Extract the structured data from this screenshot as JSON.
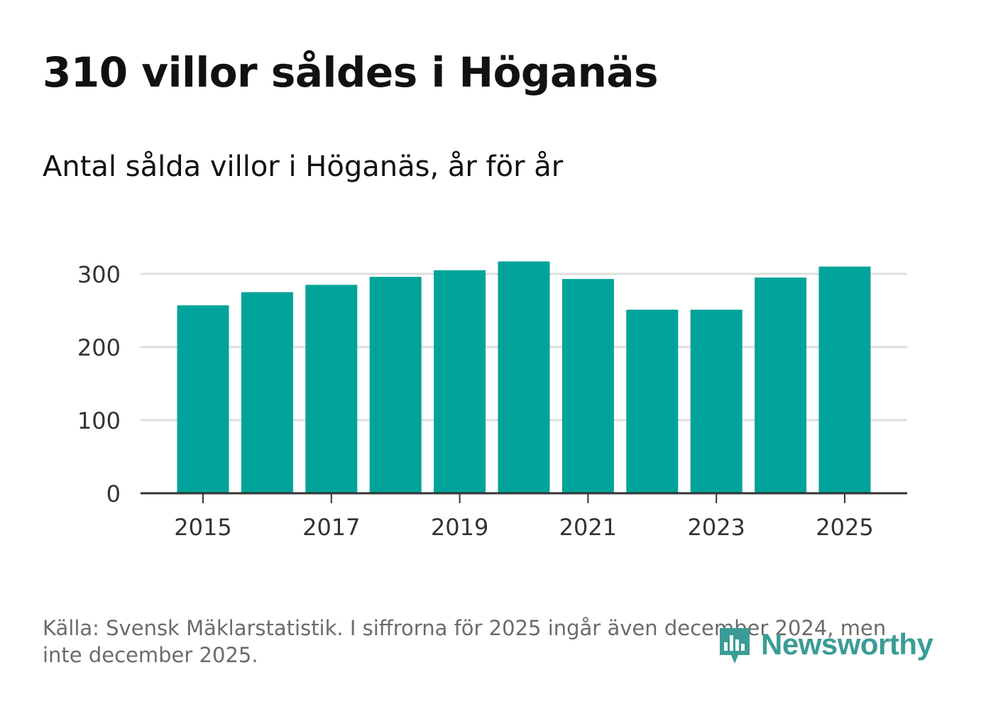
{
  "header": {
    "title": "310 villor såldes i Höganäs",
    "subtitle": "Antal sålda villor i Höganäs, år för år"
  },
  "chart_data": {
    "type": "bar",
    "title": "310 villor såldes i Höganäs",
    "subtitle": "Antal sålda villor i Höganäs, år för år",
    "categories": [
      "2015",
      "2016",
      "2017",
      "2018",
      "2019",
      "2020",
      "2021",
      "2022",
      "2023",
      "2024",
      "2025"
    ],
    "values": [
      257,
      275,
      285,
      296,
      305,
      317,
      293,
      251,
      251,
      295,
      310
    ],
    "xtick_labels": [
      "2015",
      "2017",
      "2019",
      "2021",
      "2023",
      "2025"
    ],
    "ytick_values": [
      0,
      100,
      200,
      300
    ],
    "ylim": [
      0,
      330
    ],
    "xlabel": "",
    "ylabel": "",
    "grid": true,
    "bar_color": "#00a39a"
  },
  "footer": {
    "source": "Källa: Svensk Mäklarstatistik. I siffrorna för 2025 ingår även december 2024, men inte december 2025.",
    "brand": "Newsworthy",
    "brand_color": "#3a9c96"
  }
}
